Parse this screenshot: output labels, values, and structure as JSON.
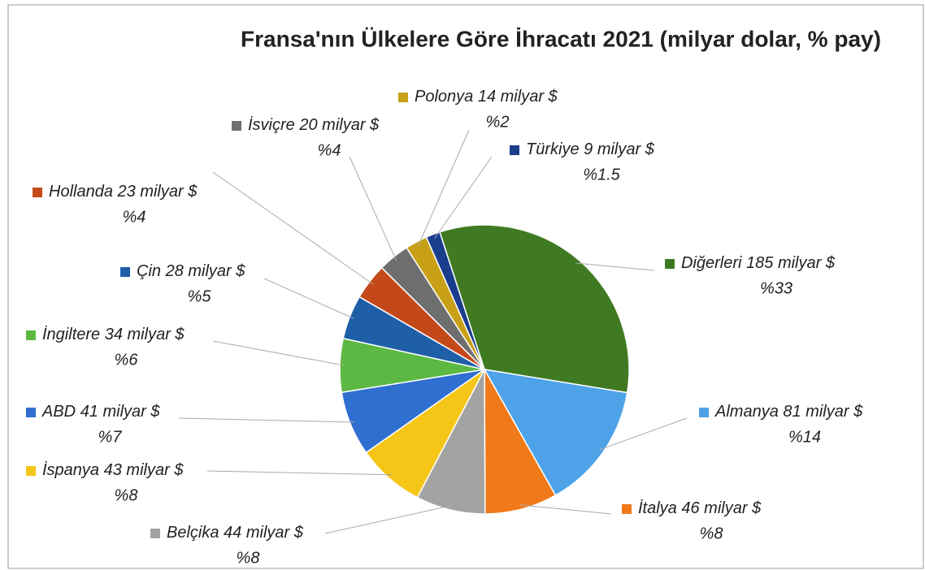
{
  "chart_data": {
    "type": "pie",
    "title": "Fransa'nın Ülkelere Göre İhracatı 2021 (milyar dolar, % pay)",
    "categories": [
      "Diğerleri",
      "Almanya",
      "İtalya",
      "Belçika",
      "İspanya",
      "ABD",
      "İngiltere",
      "Çin",
      "Hollanda",
      "İsviçre",
      "Polonya",
      "Türkiye"
    ],
    "values": [
      185,
      81,
      46,
      44,
      43,
      41,
      34,
      28,
      23,
      20,
      14,
      9
    ],
    "value_labels": [
      "185 milyar $",
      "81 milyar $",
      "46 milyar $",
      "44 milyar $",
      "43 milyar $",
      "41 milyar $",
      "34 milyar $",
      "28 milyar $",
      "23 milyar $",
      "20 milyar $",
      "14 milyar $",
      "9 milyar $"
    ],
    "share_labels": [
      "%33",
      "%14",
      "%8",
      "%8",
      "%8",
      "%7",
      "%6",
      "%5",
      "%4",
      "%4",
      "%2",
      "%1.5"
    ],
    "colors": [
      "#3f7a22",
      "#4ea3e8",
      "#f07a1a",
      "#a3a3a3",
      "#f5c518",
      "#2f6fd0",
      "#5cb842",
      "#1f5fa8",
      "#c4491a",
      "#6e6e6e",
      "#c8a018",
      "#1a3d8c"
    ]
  }
}
